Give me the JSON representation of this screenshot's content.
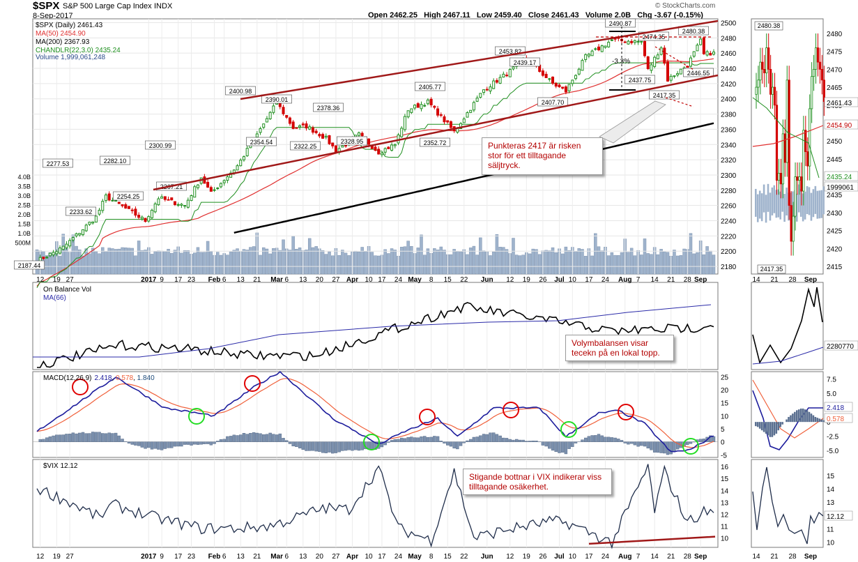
{
  "header": {
    "symbol": "$SPX",
    "name": "S&P 500 Large Cap Index",
    "exchange": "INDX",
    "date": "8-Sep-2017",
    "ohlc": "Open 2462.25   High 2467.11   Low 2459.40   Close 2461.43   Volume 2.0B   Chg -3.67 (-0.15%)",
    "brand": "© StockCharts.com"
  },
  "legend": {
    "main": "$SPX (Daily) 2461.43",
    "ma50": "MA(50) 2454.90",
    "ma200": "MA(200) 2367.93",
    "chandelier": "CHANDLR(22,3.0) 2435.24",
    "volume": "Volume 1,999,061,248",
    "obv": "On Balance Vol",
    "obv_ma": "MA(66)",
    "macd_prefix": "MACD(12,26,9)",
    "macd_v1": "2.418",
    "macd_v2": "0.578",
    "macd_v3": "1.840",
    "vix": "$VIX 12.12"
  },
  "annotations": {
    "callout1": "Punkteras 2417 är risken stor för ett tilltagande säljtryck.",
    "callout2": "Volymbalansen visar tecekn på en lokal topp.",
    "callout3": "Stigande bottnar i VIX indikerar viss tilltagande osäkerhet.",
    "pct": "-3.3%"
  },
  "colors": {
    "up": "#1f8f1f",
    "down": "#d40000",
    "ma50": "#e03030",
    "ma200": "#000000",
    "chandelier": "#1f8f1f",
    "volume": "#9fb3cc",
    "channel": "#a01818",
    "obv": "#000000",
    "obv_ma": "#2a2aa8",
    "macd": "#1c1c9c",
    "signal": "#f0603a",
    "vix": "#1f2d4a",
    "circle_red": "#e00000",
    "circle_green": "#22dd22"
  },
  "chart_data": [
    {
      "type": "candlestick",
      "title": "$SPX (Daily)",
      "ylim": [
        2170,
        2505
      ],
      "y_ticks": [
        2180,
        2200,
        2220,
        2240,
        2260,
        2280,
        2300,
        2320,
        2340,
        2360,
        2380,
        2400,
        2420,
        2440,
        2460,
        2480,
        2500
      ],
      "x_labels": [
        "12",
        "19",
        "27",
        "2017",
        "9",
        "17",
        "23",
        "Feb",
        "6",
        "13",
        "21",
        "Mar",
        "6",
        "13",
        "20",
        "27",
        "Apr",
        "10",
        "17",
        "24",
        "May",
        "8",
        "15",
        "22",
        "Jun",
        "12",
        "19",
        "26",
        "Jul",
        "10",
        "17",
        "24",
        "Aug",
        "7",
        "14",
        "21",
        "28",
        "Sep"
      ],
      "volume_ticks": [
        "4.0B",
        "3.5B",
        "3.0B",
        "2.5B",
        "2.0B",
        "1.5B",
        "1.0B",
        "500M"
      ],
      "labels": [
        "2480.38",
        "2490.87",
        "2474.35",
        "2453.82",
        "2439.17",
        "2437.75",
        "2446.55",
        "2417.35",
        "2407.70",
        "2405.77",
        "2400.98",
        "2390.01",
        "2378.36",
        "2354.54",
        "2352.72",
        "2328.95",
        "2322.25",
        "2300.99",
        "2282.10",
        "2277.53",
        "2267.21",
        "2254.25",
        "2233.62",
        "2187.44"
      ],
      "anchors": [
        {
          "d": "2016-11-11",
          "c": 2187
        },
        {
          "d": "2016-11-23",
          "c": 2205
        },
        {
          "d": "2016-12-08",
          "c": 2245
        },
        {
          "d": "2016-12-13",
          "c": 2272
        },
        {
          "d": "2016-12-30",
          "c": 2240
        },
        {
          "d": "2017-01-06",
          "c": 2270
        },
        {
          "d": "2017-01-19",
          "c": 2260
        },
        {
          "d": "2017-01-26",
          "c": 2297
        },
        {
          "d": "2017-01-31",
          "c": 2276
        },
        {
          "d": "2017-02-10",
          "c": 2312
        },
        {
          "d": "2017-02-22",
          "c": 2360
        },
        {
          "d": "2017-03-01",
          "c": 2395
        },
        {
          "d": "2017-03-08",
          "c": 2362
        },
        {
          "d": "2017-03-14",
          "c": 2364
        },
        {
          "d": "2017-03-22",
          "c": 2348
        },
        {
          "d": "2017-03-27",
          "c": 2332
        },
        {
          "d": "2017-04-05",
          "c": 2353
        },
        {
          "d": "2017-04-13",
          "c": 2330
        },
        {
          "d": "2017-04-21",
          "c": 2340
        },
        {
          "d": "2017-04-27",
          "c": 2386
        },
        {
          "d": "2017-05-05",
          "c": 2396
        },
        {
          "d": "2017-05-17",
          "c": 2357
        },
        {
          "d": "2017-05-31",
          "c": 2412
        },
        {
          "d": "2017-06-09",
          "c": 2433
        },
        {
          "d": "2017-06-19",
          "c": 2453
        },
        {
          "d": "2017-06-29",
          "c": 2420
        },
        {
          "d": "2017-07-06",
          "c": 2410
        },
        {
          "d": "2017-07-14",
          "c": 2455
        },
        {
          "d": "2017-07-26",
          "c": 2477
        },
        {
          "d": "2017-08-08",
          "c": 2475
        },
        {
          "d": "2017-08-10",
          "c": 2438
        },
        {
          "d": "2017-08-16",
          "c": 2468
        },
        {
          "d": "2017-08-18",
          "c": 2425
        },
        {
          "d": "2017-08-24",
          "c": 2438
        },
        {
          "d": "2017-08-28",
          "c": 2444
        },
        {
          "d": "2017-09-01",
          "c": 2476
        },
        {
          "d": "2017-09-05",
          "c": 2458
        },
        {
          "d": "2017-09-08",
          "c": 2461.43
        }
      ]
    },
    {
      "type": "line",
      "title": "On Balance Vol",
      "series": [
        {
          "name": "On Balance Vol"
        },
        {
          "name": "MA(66)"
        }
      ]
    },
    {
      "type": "line",
      "title": "MACD(12,26,9)",
      "ylim": [
        -6,
        27
      ],
      "y_ticks": [
        -5,
        0,
        5,
        10,
        15,
        20,
        25
      ],
      "values": {
        "macd": 2.418,
        "signal": 0.578,
        "histogram": 1.84
      },
      "anchors": [
        {
          "d": "2016-11-11",
          "m": 4
        },
        {
          "d": "2016-12-16",
          "m": 25
        },
        {
          "d": "2017-01-10",
          "m": 13
        },
        {
          "d": "2017-02-01",
          "m": 10
        },
        {
          "d": "2017-02-17",
          "m": 21
        },
        {
          "d": "2017-03-02",
          "m": 27
        },
        {
          "d": "2017-03-24",
          "m": 9
        },
        {
          "d": "2017-04-14",
          "m": -1
        },
        {
          "d": "2017-04-26",
          "m": 4
        },
        {
          "d": "2017-05-10",
          "m": 9
        },
        {
          "d": "2017-05-18",
          "m": 2
        },
        {
          "d": "2017-06-05",
          "m": 13
        },
        {
          "d": "2017-06-23",
          "m": 13
        },
        {
          "d": "2017-07-06",
          "m": 2
        },
        {
          "d": "2017-07-20",
          "m": 11
        },
        {
          "d": "2017-07-28",
          "m": 12
        },
        {
          "d": "2017-08-09",
          "m": 7
        },
        {
          "d": "2017-08-21",
          "m": -4
        },
        {
          "d": "2017-08-29",
          "m": -3
        },
        {
          "d": "2017-09-08",
          "m": 2.418
        }
      ]
    },
    {
      "type": "line",
      "title": "$VIX",
      "ylim": [
        9.2,
        16.6
      ],
      "y_ticks": [
        10,
        11,
        12,
        13,
        14,
        15,
        16
      ],
      "last": 12.12,
      "anchors": [
        {
          "d": "2016-11-11",
          "v": 14.2
        },
        {
          "d": "2016-11-28",
          "v": 13.0
        },
        {
          "d": "2016-12-09",
          "v": 11.7
        },
        {
          "d": "2016-12-15",
          "v": 12.8
        },
        {
          "d": "2017-01-05",
          "v": 11.7
        },
        {
          "d": "2017-01-26",
          "v": 10.8
        },
        {
          "d": "2017-02-10",
          "v": 10.8
        },
        {
          "d": "2017-02-27",
          "v": 11.0
        },
        {
          "d": "2017-03-09",
          "v": 11.7
        },
        {
          "d": "2017-03-21",
          "v": 12.5
        },
        {
          "d": "2017-03-31",
          "v": 12.4
        },
        {
          "d": "2017-04-13",
          "v": 15.9
        },
        {
          "d": "2017-04-24",
          "v": 10.8
        },
        {
          "d": "2017-05-08",
          "v": 9.8
        },
        {
          "d": "2017-05-17",
          "v": 15.6
        },
        {
          "d": "2017-05-25",
          "v": 10.0
        },
        {
          "d": "2017-06-09",
          "v": 10.7
        },
        {
          "d": "2017-06-29",
          "v": 11.4
        },
        {
          "d": "2017-07-07",
          "v": 11.2
        },
        {
          "d": "2017-07-26",
          "v": 9.6
        },
        {
          "d": "2017-08-10",
          "v": 16.0
        },
        {
          "d": "2017-08-14",
          "v": 12.3
        },
        {
          "d": "2017-08-17",
          "v": 15.6
        },
        {
          "d": "2017-08-28",
          "v": 11.3
        },
        {
          "d": "2017-09-05",
          "v": 12.2
        },
        {
          "d": "2017-09-08",
          "v": 12.12
        }
      ]
    }
  ]
}
